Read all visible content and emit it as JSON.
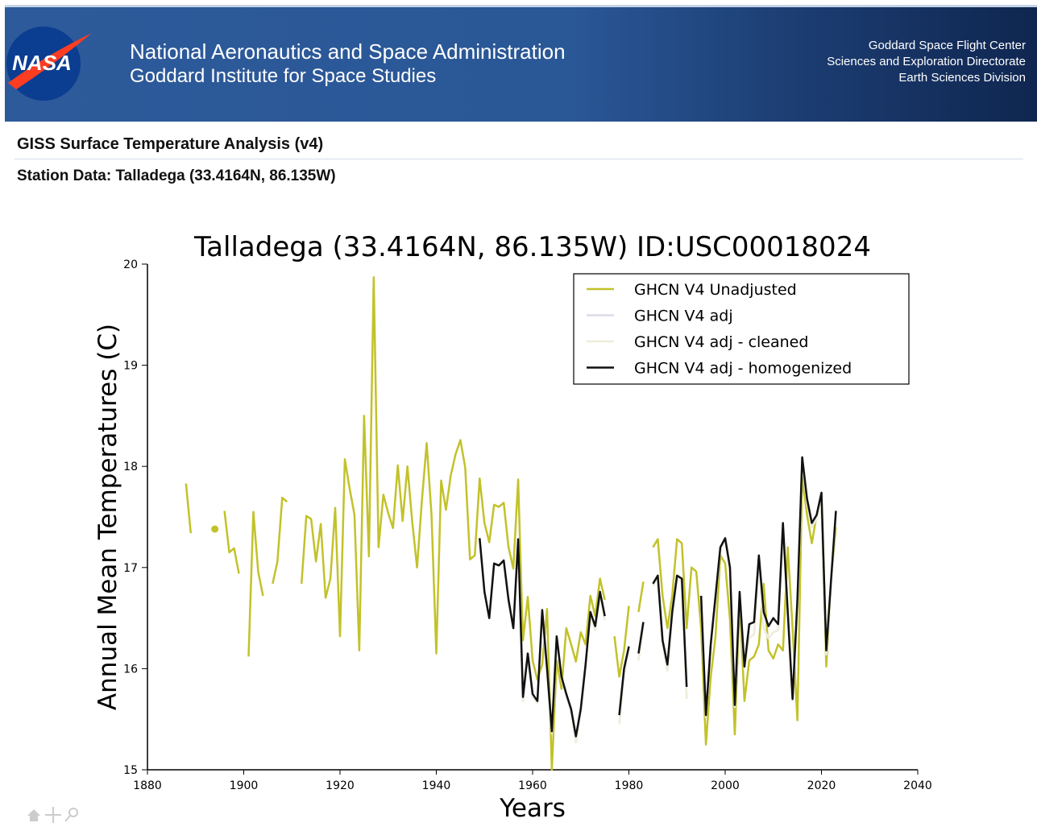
{
  "header": {
    "logo_text": "NASA",
    "agency": "National Aeronautics and Space Administration",
    "institute": "Goddard Institute for Space Studies",
    "center_lines": [
      "Goddard Space Flight Center",
      "Sciences and Exploration Directorate",
      "Earth Sciences Division"
    ]
  },
  "page": {
    "title": "GISS Surface Temperature Analysis (v4)",
    "subtitle": "Station Data: Talladega (33.4164N, 86.135W)"
  },
  "chart_data": {
    "type": "line",
    "title": "Talladega (33.4164N, 86.135W) ID:USC00018024",
    "xlabel": "Years",
    "ylabel": "Annual Mean Temperatures (C)",
    "x": [
      1888,
      1889,
      1890,
      1891,
      1892,
      1893,
      1894,
      1895,
      1896,
      1897,
      1898,
      1899,
      1900,
      1901,
      1902,
      1903,
      1904,
      1905,
      1906,
      1907,
      1908,
      1909,
      1910,
      1911,
      1912,
      1913,
      1914,
      1915,
      1916,
      1917,
      1918,
      1919,
      1920,
      1921,
      1922,
      1923,
      1924,
      1925,
      1926,
      1927,
      1928,
      1929,
      1930,
      1931,
      1932,
      1933,
      1934,
      1935,
      1936,
      1937,
      1938,
      1939,
      1940,
      1941,
      1942,
      1943,
      1944,
      1945,
      1946,
      1947,
      1948,
      1949,
      1950,
      1951,
      1952,
      1953,
      1954,
      1955,
      1956,
      1957,
      1958,
      1959,
      1960,
      1961,
      1962,
      1963,
      1964,
      1965,
      1966,
      1967,
      1968,
      1969,
      1970,
      1971,
      1972,
      1973,
      1974,
      1975,
      1976,
      1977,
      1978,
      1979,
      1980,
      1981,
      1982,
      1983,
      1984,
      1985,
      1986,
      1987,
      1988,
      1989,
      1990,
      1991,
      1992,
      1993,
      1994,
      1995,
      1996,
      1997,
      1998,
      1999,
      2000,
      2001,
      2002,
      2003,
      2004,
      2005,
      2006,
      2007,
      2008,
      2009,
      2010,
      2011,
      2012,
      2013,
      2014,
      2015,
      2016,
      2017,
      2018,
      2019,
      2020,
      2021,
      2022,
      2023
    ],
    "series": [
      {
        "name": "GHCN V4 Unadjusted",
        "color": "#c2c22a",
        "values": [
          17.83,
          17.34,
          null,
          null,
          null,
          null,
          17.38,
          null,
          17.56,
          17.15,
          17.19,
          16.94,
          null,
          16.12,
          17.55,
          16.96,
          16.72,
          null,
          16.84,
          17.06,
          17.69,
          17.65,
          null,
          null,
          16.84,
          17.51,
          17.48,
          17.06,
          17.43,
          16.7,
          16.89,
          17.59,
          16.32,
          18.07,
          17.78,
          17.52,
          16.18,
          18.5,
          17.11,
          19.87,
          17.2,
          17.72,
          17.54,
          17.39,
          18.01,
          17.46,
          18.0,
          17.45,
          17.0,
          17.66,
          18.23,
          17.52,
          16.15,
          17.86,
          17.57,
          17.91,
          18.12,
          18.26,
          17.99,
          17.08,
          17.12,
          17.88,
          17.44,
          17.25,
          17.62,
          17.6,
          17.64,
          17.2,
          16.99,
          17.87,
          16.28,
          16.71,
          16.08,
          15.89,
          16.04,
          16.59,
          15.0,
          16.08,
          15.8,
          16.4,
          16.24,
          16.07,
          16.36,
          16.24,
          16.72,
          16.52,
          16.89,
          16.68,
          null,
          16.32,
          15.92,
          16.18,
          16.62,
          null,
          16.56,
          16.86,
          null,
          17.2,
          17.28,
          16.72,
          16.4,
          16.72,
          17.28,
          17.24,
          16.4,
          17.0,
          16.96,
          16.4,
          15.25,
          15.92,
          16.32,
          17.12,
          17.04,
          16.48,
          15.35,
          16.68,
          15.68,
          16.08,
          16.12,
          16.24,
          16.84,
          16.18,
          16.1,
          16.24,
          16.18,
          17.2,
          16.4,
          15.49,
          17.9,
          17.52,
          17.24,
          17.52,
          17.68,
          16.02,
          16.88,
          17.4
        ]
      },
      {
        "name": "GHCN V4 adj",
        "color": "#dcdce8",
        "values": [
          null,
          null,
          null,
          null,
          null,
          null,
          null,
          null,
          null,
          null,
          null,
          null,
          null,
          null,
          null,
          null,
          null,
          null,
          null,
          null,
          null,
          null,
          null,
          null,
          null,
          null,
          null,
          null,
          null,
          null,
          null,
          null,
          null,
          null,
          null,
          null,
          null,
          null,
          null,
          null,
          null,
          null,
          null,
          null,
          null,
          null,
          null,
          null,
          null,
          null,
          null,
          null,
          null,
          null,
          null,
          null,
          null,
          null,
          null,
          null,
          null,
          17.29,
          16.76,
          16.5,
          17.04,
          17.02,
          17.07,
          16.68,
          16.4,
          17.28,
          15.68,
          16.12,
          15.72,
          15.66,
          16.56,
          15.98,
          15.36,
          16.3,
          15.9,
          15.73,
          15.58,
          15.27,
          15.58,
          16.02,
          16.54,
          16.38,
          16.72,
          16.48,
          null,
          null,
          15.45,
          15.95,
          16.2,
          null,
          16.08,
          16.44,
          null,
          16.82,
          16.9,
          16.24,
          15.98,
          16.52,
          16.9,
          16.86,
          15.7,
          null,
          null,
          16.7,
          15.52,
          16.22,
          16.7,
          17.18,
          17.27,
          16.96,
          15.62,
          16.74,
          16.0,
          16.3,
          16.34,
          17.08,
          16.4,
          16.3,
          16.36,
          16.38,
          17.4,
          16.52,
          15.68,
          16.64,
          18.06,
          17.64,
          17.4,
          17.48,
          17.72,
          16.14,
          16.86,
          17.52
        ]
      },
      {
        "name": "GHCN V4 adj - cleaned",
        "color": "#efeddc",
        "values": [
          null,
          null,
          null,
          null,
          null,
          null,
          null,
          null,
          null,
          null,
          null,
          null,
          null,
          null,
          null,
          null,
          null,
          null,
          null,
          null,
          null,
          null,
          null,
          null,
          null,
          null,
          null,
          null,
          null,
          null,
          null,
          null,
          null,
          null,
          null,
          null,
          null,
          null,
          null,
          null,
          null,
          null,
          null,
          null,
          null,
          null,
          null,
          null,
          null,
          null,
          null,
          null,
          null,
          null,
          null,
          null,
          null,
          null,
          null,
          null,
          null,
          17.29,
          16.76,
          16.5,
          17.04,
          17.02,
          17.07,
          16.68,
          16.4,
          17.28,
          15.68,
          16.12,
          15.72,
          15.66,
          16.56,
          15.98,
          15.36,
          16.3,
          15.9,
          15.73,
          15.58,
          15.27,
          15.58,
          16.02,
          16.54,
          16.38,
          16.72,
          16.48,
          null,
          null,
          15.45,
          15.95,
          16.2,
          null,
          16.08,
          16.44,
          null,
          16.82,
          16.9,
          16.24,
          15.98,
          16.52,
          16.9,
          16.86,
          15.7,
          null,
          null,
          16.7,
          15.52,
          16.22,
          16.7,
          17.18,
          17.27,
          16.96,
          15.62,
          16.74,
          16.0,
          16.3,
          16.34,
          17.08,
          16.4,
          16.3,
          16.36,
          16.38,
          17.4,
          16.52,
          15.68,
          16.64,
          18.06,
          17.64,
          17.4,
          17.48,
          17.72,
          16.14,
          16.86,
          17.52
        ]
      },
      {
        "name": "GHCN V4 adj - homogenized",
        "color": "#111111",
        "values": [
          null,
          null,
          null,
          null,
          null,
          null,
          null,
          null,
          null,
          null,
          null,
          null,
          null,
          null,
          null,
          null,
          null,
          null,
          null,
          null,
          null,
          null,
          null,
          null,
          null,
          null,
          null,
          null,
          null,
          null,
          null,
          null,
          null,
          null,
          null,
          null,
          null,
          null,
          null,
          null,
          null,
          null,
          null,
          null,
          null,
          null,
          null,
          null,
          null,
          null,
          null,
          null,
          null,
          null,
          null,
          null,
          null,
          null,
          null,
          null,
          null,
          17.29,
          16.76,
          16.5,
          17.04,
          17.02,
          17.07,
          16.68,
          16.4,
          17.28,
          15.72,
          16.15,
          15.75,
          15.68,
          16.58,
          16.0,
          15.38,
          16.32,
          15.92,
          15.75,
          15.6,
          15.33,
          15.6,
          16.04,
          16.56,
          16.42,
          16.76,
          16.52,
          null,
          null,
          15.54,
          16.0,
          16.22,
          null,
          16.15,
          16.46,
          null,
          16.84,
          16.92,
          16.28,
          16.04,
          16.56,
          16.92,
          16.89,
          15.82,
          null,
          null,
          16.72,
          15.54,
          16.24,
          16.72,
          17.2,
          17.29,
          17.0,
          15.64,
          16.76,
          16.02,
          16.44,
          16.46,
          17.12,
          16.56,
          16.42,
          16.5,
          16.44,
          17.44,
          16.56,
          15.7,
          16.68,
          18.09,
          17.68,
          17.44,
          17.52,
          17.74,
          16.18,
          16.88,
          17.56
        ]
      }
    ],
    "xlim": [
      1880,
      2040
    ],
    "ylim": [
      15,
      20
    ],
    "xticks": [
      1880,
      1900,
      1920,
      1940,
      1960,
      1980,
      2000,
      2020,
      2040
    ],
    "yticks": [
      15,
      16,
      17,
      18,
      19,
      20
    ],
    "legend": "upper right"
  }
}
